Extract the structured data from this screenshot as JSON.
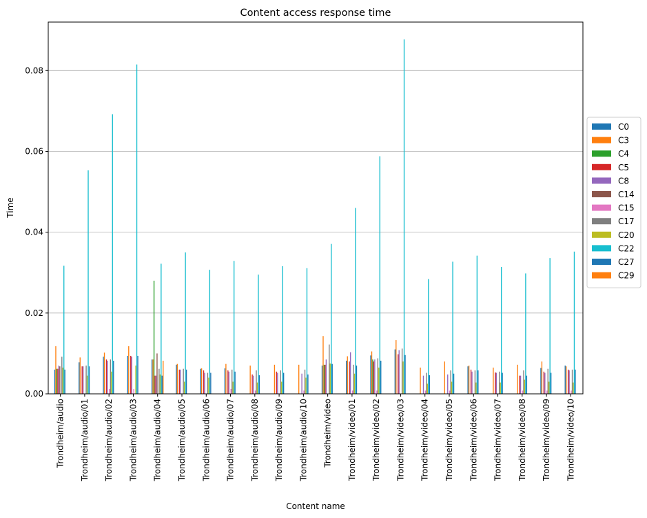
{
  "chart_data": {
    "type": "bar",
    "title": "Content access response time",
    "xlabel": "Content name",
    "ylabel": "Time",
    "ylim": [
      0,
      0.092
    ],
    "yticks": [
      "0.00",
      "0.02",
      "0.04",
      "0.06",
      "0.08"
    ],
    "ytick_values": [
      0,
      0.02,
      0.04,
      0.06,
      0.08
    ],
    "grid": "horizontal",
    "legend_position": "right-center",
    "categories": [
      "Trondheim/audio",
      "Trondheim/audio/01",
      "Trondheim/audio/02",
      "Trondheim/audio/03",
      "Trondheim/audio/04",
      "Trondheim/audio/05",
      "Trondheim/audio/06",
      "Trondheim/audio/07",
      "Trondheim/audio/08",
      "Trondheim/audio/09",
      "Trondheim/audio/10",
      "Trondheim/video",
      "Trondheim/video/01",
      "Trondheim/video/02",
      "Trondheim/video/03",
      "Trondheim/video/04",
      "Trondheim/video/05",
      "Trondheim/video/06",
      "Trondheim/video/07",
      "Trondheim/video/08",
      "Trondheim/video/09",
      "Trondheim/video/10"
    ],
    "series": [
      {
        "name": "C0",
        "color": "#1f77b4",
        "values": [
          0.006,
          0.0078,
          0.0092,
          0.0094,
          0.0085,
          0.0072,
          0.0062,
          0.0063,
          0.0,
          0.0,
          0.0,
          0.007,
          0.0082,
          0.0095,
          0.011,
          0.0,
          0.0,
          0.0068,
          0.0,
          0.0,
          0.0064,
          0.007
        ]
      },
      {
        "name": "C3",
        "color": "#ff7f0e",
        "values": [
          0.0118,
          0.009,
          0.0102,
          0.0118,
          0.0085,
          0.0074,
          0.0063,
          0.0074,
          0.007,
          0.0072,
          0.0072,
          0.0143,
          0.0093,
          0.0105,
          0.0133,
          0.0065,
          0.008,
          0.007,
          0.0065,
          0.0072,
          0.008,
          0.0068
        ]
      },
      {
        "name": "C4",
        "color": "#2ca02c",
        "values": [
          0.0062,
          0.0,
          0.0,
          0.0,
          0.028,
          0.0,
          0.0,
          0.0,
          0.0,
          0.0,
          0.0,
          0.0072,
          0.0,
          0.0085,
          0.0,
          0.0,
          0.0,
          0.0,
          0.0,
          0.0,
          0.0,
          0.0
        ]
      },
      {
        "name": "C5",
        "color": "#d62728",
        "values": [
          0.0062,
          0.0068,
          0.0085,
          0.0094,
          0.0045,
          0.006,
          0.0058,
          0.0058,
          0.0048,
          0.0055,
          0.0,
          0.0072,
          0.008,
          0.008,
          0.0098,
          0.0,
          0.0,
          0.006,
          0.0053,
          0.0045,
          0.0055,
          0.006
        ]
      },
      {
        "name": "C8",
        "color": "#9467bd",
        "values": [
          0.007,
          0.0068,
          0.0082,
          0.0092,
          0.0045,
          0.006,
          0.0052,
          0.0055,
          0.0045,
          0.0052,
          0.005,
          0.0085,
          0.0103,
          0.0085,
          0.0108,
          0.0045,
          0.0048,
          0.0055,
          0.0052,
          0.0045,
          0.0052,
          0.0058
        ]
      },
      {
        "name": "C14",
        "color": "#8c564b",
        "values": [
          0.0068,
          0.0,
          0.0,
          0.0,
          0.01,
          0.0,
          0.0,
          0.0,
          0.0,
          0.0,
          0.0,
          0.0,
          0.0,
          0.0,
          0.0,
          0.0,
          0.0,
          0.0,
          0.0,
          0.0,
          0.0,
          0.0
        ]
      },
      {
        "name": "C15",
        "color": "#e377c2",
        "values": [
          0.0,
          0.0,
          0.0012,
          0.0012,
          0.0,
          0.0,
          0.0,
          0.0012,
          0.0008,
          0.0,
          0.0008,
          0.0,
          0.0008,
          0.0008,
          0.0,
          0.0008,
          0.0008,
          0.0,
          0.0,
          0.0008,
          0.0008,
          0.0008
        ]
      },
      {
        "name": "C17",
        "color": "#7f7f7f",
        "values": [
          0.0092,
          0.007,
          0.0085,
          0.0,
          0.0062,
          0.0062,
          0.0052,
          0.006,
          0.0058,
          0.0058,
          0.006,
          0.0122,
          0.0072,
          0.0088,
          0.0112,
          0.0052,
          0.0058,
          0.0058,
          0.0055,
          0.0058,
          0.0062,
          0.006
        ]
      },
      {
        "name": "C20",
        "color": "#bcbd22",
        "values": [
          0.0065,
          0.0045,
          0.0055,
          0.007,
          0.0048,
          0.003,
          0.004,
          0.003,
          0.0028,
          0.003,
          0.004,
          0.0075,
          0.005,
          0.0065,
          0.008,
          0.0025,
          0.003,
          0.0028,
          0.0028,
          0.0035,
          0.003,
          0.0028
        ]
      },
      {
        "name": "C22",
        "color": "#17becf",
        "values": [
          0.0317,
          0.0553,
          0.0692,
          0.0815,
          0.0322,
          0.035,
          0.0307,
          0.0329,
          0.0295,
          0.0316,
          0.0311,
          0.0371,
          0.046,
          0.0588,
          0.0877,
          0.0284,
          0.0327,
          0.0342,
          0.0314,
          0.0298,
          0.0336,
          0.0352
        ]
      },
      {
        "name": "C27",
        "color": "#1f77b4",
        "values": [
          0.006,
          0.0068,
          0.0082,
          0.0094,
          0.0045,
          0.006,
          0.0052,
          0.0055,
          0.0046,
          0.0052,
          0.0048,
          0.0074,
          0.007,
          0.0082,
          0.0096,
          0.0046,
          0.005,
          0.0058,
          0.0052,
          0.0045,
          0.0052,
          0.006
        ]
      },
      {
        "name": "C29",
        "color": "#ff7f0e",
        "values": [
          0.0,
          0.0,
          0.0,
          0.0,
          0.0082,
          0.0,
          0.0,
          0.0,
          0.0,
          0.0,
          0.0,
          0.0,
          0.0,
          0.0,
          0.0,
          0.0,
          0.0,
          0.0,
          0.0,
          0.0,
          0.0,
          0.0
        ]
      }
    ]
  }
}
